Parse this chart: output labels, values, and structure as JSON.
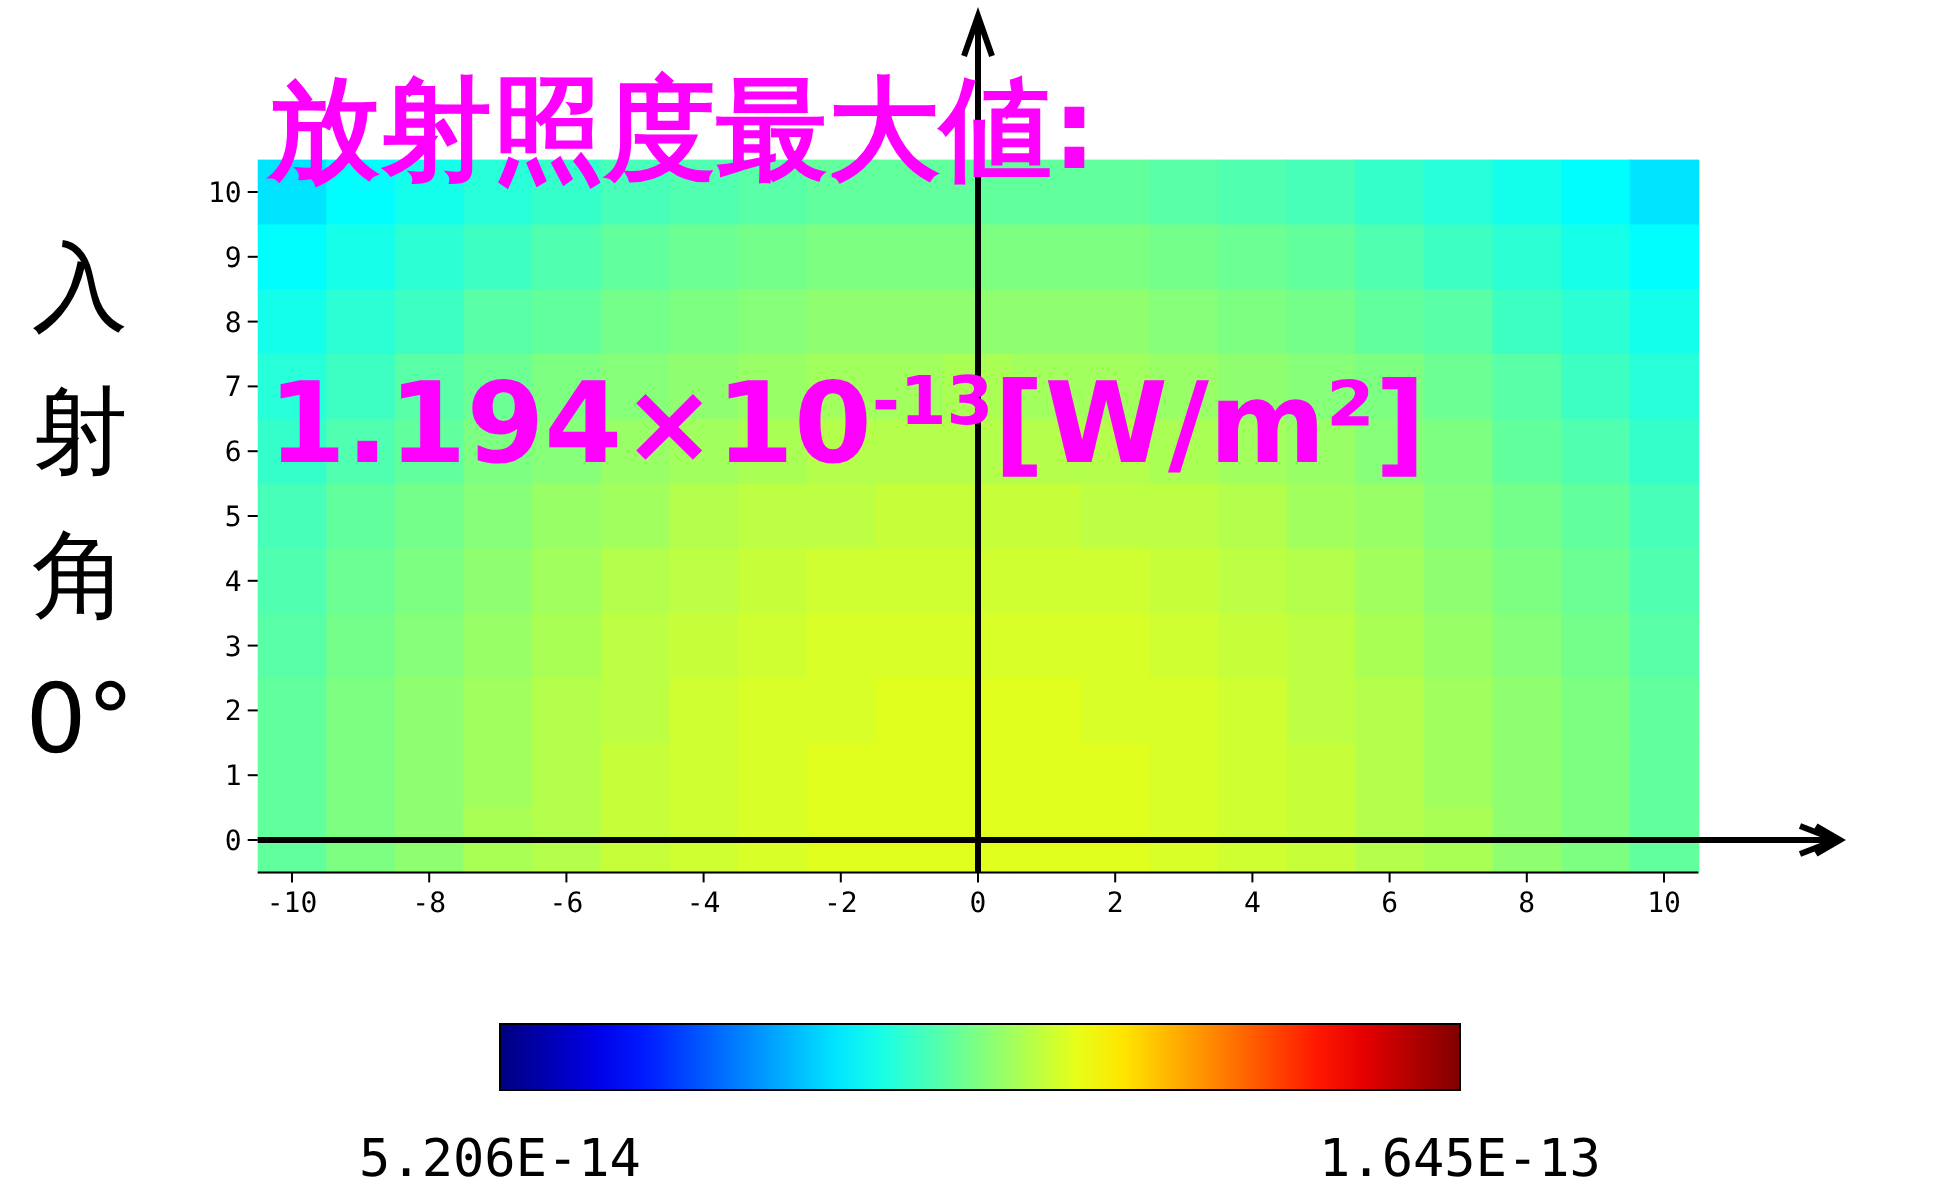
{
  "chart_data": {
    "type": "heatmap",
    "title": "入射角0°",
    "annotations": [
      "放射照度最大値:",
      "1.194×10$^{-13}$[W/m²]"
    ],
    "categories": [
      "-10",
      null,
      "-8",
      null,
      "-6",
      null,
      "-4",
      null,
      "-2",
      null,
      "0",
      null,
      "2",
      null,
      "4",
      null,
      "6",
      null,
      "8",
      null,
      "10"
    ],
    "y_categories": [
      "10",
      "9",
      "8",
      "7",
      "6",
      "5",
      "4",
      "3",
      "2",
      "1",
      "0"
    ],
    "clim": [
      5.206e-14,
      1.645e-13
    ],
    "cticks": [
      {
        "value": 5.206e-14,
        "label": "5.206E-14"
      },
      {
        "value": 1.645e-13,
        "label": "1.645E-13"
      }
    ],
    "cells": [
      [
        9.14e-14,
        9.41e-14,
        9.64e-14,
        9.85e-14,
        1e-13,
        1.02e-13,
        1.03e-13,
        1.04e-13,
        1.05e-13,
        1.05e-13,
        1.05e-13,
        1.05e-13,
        1.05e-13,
        1.04e-13,
        1.03e-13,
        1.02e-13,
        1e-13,
        9.85e-14,
        9.64e-14,
        9.41e-14,
        9.14e-14
      ],
      [
        9.41e-14,
        9.67e-14,
        9.91e-14,
        1.01e-13,
        1.03e-13,
        1.05e-13,
        1.06e-13,
        1.07e-13,
        1.08e-13,
        1.08e-13,
        1.08e-13,
        1.08e-13,
        1.08e-13,
        1.07e-13,
        1.06e-13,
        1.05e-13,
        1.03e-13,
        1.01e-13,
        9.91e-14,
        9.67e-14,
        9.41e-14
      ],
      [
        9.64e-14,
        9.91e-14,
        1.01e-13,
        1.04e-13,
        1.05e-13,
        1.07e-13,
        1.08e-13,
        1.09e-13,
        1.1e-13,
        1.1e-13,
        1.1e-13,
        1.1e-13,
        1.1e-13,
        1.09e-13,
        1.08e-13,
        1.07e-13,
        1.05e-13,
        1.04e-13,
        1.01e-13,
        9.91e-14,
        9.64e-14
      ],
      [
        9.85e-14,
        1.01e-13,
        1.04e-13,
        1.06e-13,
        1.08e-13,
        1.09e-13,
        1.1e-13,
        1.11e-13,
        1.12e-13,
        1.12e-13,
        1.13e-13,
        1.12e-13,
        1.12e-13,
        1.11e-13,
        1.1e-13,
        1.09e-13,
        1.08e-13,
        1.06e-13,
        1.04e-13,
        1.01e-13,
        9.85e-14
      ],
      [
        1e-13,
        1.03e-13,
        1.05e-13,
        1.08e-13,
        1.09e-13,
        1.11e-13,
        1.12e-13,
        1.13e-13,
        1.14e-13,
        1.14e-13,
        1.14e-13,
        1.14e-13,
        1.14e-13,
        1.13e-13,
        1.12e-13,
        1.11e-13,
        1.09e-13,
        1.08e-13,
        1.05e-13,
        1.03e-13,
        1e-13
      ],
      [
        1.02e-13,
        1.05e-13,
        1.07e-13,
        1.09e-13,
        1.11e-13,
        1.12e-13,
        1.14e-13,
        1.15e-13,
        1.15e-13,
        1.16e-13,
        1.16e-13,
        1.16e-13,
        1.15e-13,
        1.15e-13,
        1.14e-13,
        1.12e-13,
        1.11e-13,
        1.09e-13,
        1.07e-13,
        1.05e-13,
        1.02e-13
      ],
      [
        1.03e-13,
        1.06e-13,
        1.08e-13,
        1.1e-13,
        1.12e-13,
        1.14e-13,
        1.15e-13,
        1.16e-13,
        1.17e-13,
        1.17e-13,
        1.17e-13,
        1.17e-13,
        1.17e-13,
        1.16e-13,
        1.15e-13,
        1.14e-13,
        1.12e-13,
        1.1e-13,
        1.08e-13,
        1.06e-13,
        1.03e-13
      ],
      [
        1.04e-13,
        1.07e-13,
        1.09e-13,
        1.11e-13,
        1.13e-13,
        1.15e-13,
        1.16e-13,
        1.17e-13,
        1.18e-13,
        1.18e-13,
        1.18e-13,
        1.18e-13,
        1.18e-13,
        1.17e-13,
        1.16e-13,
        1.15e-13,
        1.13e-13,
        1.11e-13,
        1.09e-13,
        1.07e-13,
        1.04e-13
      ],
      [
        1.05e-13,
        1.08e-13,
        1.1e-13,
        1.12e-13,
        1.14e-13,
        1.15e-13,
        1.17e-13,
        1.18e-13,
        1.18e-13,
        1.19e-13,
        1.19e-13,
        1.19e-13,
        1.18e-13,
        1.18e-13,
        1.17e-13,
        1.15e-13,
        1.14e-13,
        1.12e-13,
        1.1e-13,
        1.08e-13,
        1.05e-13
      ],
      [
        1.05e-13,
        1.08e-13,
        1.1e-13,
        1.12e-13,
        1.14e-13,
        1.16e-13,
        1.17e-13,
        1.18e-13,
        1.19e-13,
        1.19e-13,
        1.19e-13,
        1.19e-13,
        1.19e-13,
        1.18e-13,
        1.17e-13,
        1.16e-13,
        1.14e-13,
        1.12e-13,
        1.1e-13,
        1.08e-13,
        1.05e-13
      ],
      [
        1.05e-13,
        1.08e-13,
        1.1e-13,
        1.13e-13,
        1.14e-13,
        1.16e-13,
        1.17e-13,
        1.18e-13,
        1.19e-13,
        1.19e-13,
        1.19e-13,
        1.19e-13,
        1.19e-13,
        1.18e-13,
        1.17e-13,
        1.16e-13,
        1.14e-13,
        1.13e-13,
        1.1e-13,
        1.08e-13,
        1.05e-13
      ]
    ]
  }
}
